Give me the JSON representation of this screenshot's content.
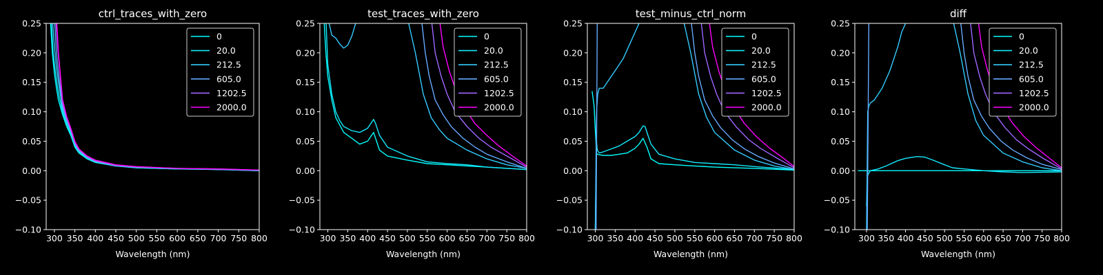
{
  "legend_labels": [
    "0",
    "20.0",
    "212.5",
    "605.0",
    "1202.5",
    "2000.0"
  ],
  "series_colors": [
    "#00ffff",
    "#14ebff",
    "#33ccff",
    "#66aaff",
    "#a066ff",
    "#ff00ff"
  ],
  "chart_data": [
    {
      "type": "line",
      "title": "ctrl_traces_with_zero",
      "xlabel": "Wavelength (nm)",
      "ylabel": "",
      "xlim": [
        280,
        800
      ],
      "ylim": [
        -0.1,
        0.25
      ],
      "xticks": [
        300,
        350,
        400,
        450,
        500,
        550,
        600,
        650,
        700,
        750,
        800
      ],
      "yticks": [
        -0.1,
        -0.05,
        0.0,
        0.05,
        0.1,
        0.15,
        0.2,
        0.25
      ],
      "xtick_labels": [
        "300",
        "350",
        "400",
        "450",
        "500",
        "550",
        "600",
        "650",
        "700",
        "750",
        "800"
      ],
      "ytick_labels": [
        "−0.10",
        "−0.05",
        "0.00",
        "0.05",
        "0.10",
        "0.15",
        "0.20",
        "0.25"
      ],
      "legend_position": "upper-right",
      "series": [
        {
          "name": "0",
          "x": [
            290,
            295,
            300,
            305,
            310,
            320,
            330,
            340,
            350,
            360,
            380,
            400,
            450,
            500,
            600,
            700,
            800
          ],
          "y": [
            0.26,
            0.2,
            0.165,
            0.14,
            0.12,
            0.095,
            0.075,
            0.06,
            0.04,
            0.03,
            0.02,
            0.014,
            0.008,
            0.005,
            0.003,
            0.002,
            0.0
          ]
        },
        {
          "name": "20.0",
          "x": [
            292,
            297,
            302,
            307,
            312,
            320,
            330,
            340,
            350,
            360,
            380,
            400,
            450,
            500,
            600,
            700,
            800
          ],
          "y": [
            0.26,
            0.2,
            0.17,
            0.145,
            0.125,
            0.1,
            0.08,
            0.062,
            0.042,
            0.032,
            0.021,
            0.015,
            0.008,
            0.005,
            0.003,
            0.002,
            0.0
          ]
        },
        {
          "name": "212.5",
          "x": [
            295,
            300,
            305,
            310,
            320,
            330,
            340,
            350,
            360,
            380,
            400,
            450,
            500,
            600,
            700,
            800
          ],
          "y": [
            0.26,
            0.21,
            0.175,
            0.15,
            0.105,
            0.085,
            0.065,
            0.044,
            0.033,
            0.022,
            0.015,
            0.008,
            0.006,
            0.004,
            0.002,
            0.001
          ]
        },
        {
          "name": "605.0",
          "x": [
            300,
            305,
            310,
            320,
            330,
            340,
            350,
            360,
            380,
            400,
            450,
            500,
            600,
            700,
            800
          ],
          "y": [
            0.26,
            0.2,
            0.165,
            0.11,
            0.088,
            0.068,
            0.046,
            0.034,
            0.023,
            0.016,
            0.009,
            0.006,
            0.004,
            0.002,
            0.001
          ]
        },
        {
          "name": "1202.5",
          "x": [
            303,
            308,
            313,
            320,
            330,
            340,
            350,
            360,
            380,
            400,
            450,
            500,
            600,
            700,
            800
          ],
          "y": [
            0.26,
            0.21,
            0.17,
            0.115,
            0.09,
            0.07,
            0.048,
            0.036,
            0.024,
            0.017,
            0.009,
            0.006,
            0.004,
            0.003,
            0.001
          ]
        },
        {
          "name": "2000.0",
          "x": [
            305,
            310,
            315,
            320,
            330,
            340,
            350,
            360,
            380,
            400,
            450,
            500,
            600,
            700,
            800
          ],
          "y": [
            0.26,
            0.2,
            0.16,
            0.12,
            0.092,
            0.072,
            0.05,
            0.037,
            0.025,
            0.018,
            0.01,
            0.007,
            0.004,
            0.003,
            0.001
          ]
        }
      ]
    },
    {
      "type": "line",
      "title": "test_traces_with_zero",
      "xlabel": "Wavelength (nm)",
      "ylabel": "",
      "xlim": [
        280,
        800
      ],
      "ylim": [
        -0.1,
        0.25
      ],
      "xticks": [
        300,
        350,
        400,
        450,
        500,
        550,
        600,
        650,
        700,
        750,
        800
      ],
      "yticks": [
        -0.1,
        -0.05,
        0.0,
        0.05,
        0.1,
        0.15,
        0.2,
        0.25
      ],
      "xtick_labels": [
        "300",
        "350",
        "400",
        "450",
        "500",
        "550",
        "600",
        "650",
        "700",
        "750",
        "800"
      ],
      "ytick_labels": [
        "−0.10",
        "−0.05",
        "0.00",
        "0.05",
        "0.10",
        "0.15",
        "0.20",
        "0.25"
      ],
      "legend_position": "upper-right",
      "series": [
        {
          "name": "0",
          "x": [
            290,
            295,
            300,
            310,
            320,
            340,
            360,
            380,
            400,
            410,
            415,
            420,
            430,
            450,
            500,
            550,
            600,
            700,
            800
          ],
          "y": [
            0.26,
            0.2,
            0.16,
            0.12,
            0.09,
            0.065,
            0.055,
            0.045,
            0.05,
            0.06,
            0.065,
            0.055,
            0.035,
            0.025,
            0.018,
            0.012,
            0.01,
            0.006,
            0.002
          ]
        },
        {
          "name": "20.0",
          "x": [
            295,
            300,
            310,
            320,
            330,
            340,
            360,
            380,
            400,
            410,
            415,
            420,
            430,
            450,
            500,
            550,
            600,
            650,
            700,
            800
          ],
          "y": [
            0.26,
            0.18,
            0.13,
            0.1,
            0.085,
            0.075,
            0.068,
            0.065,
            0.072,
            0.082,
            0.087,
            0.08,
            0.06,
            0.04,
            0.025,
            0.015,
            0.012,
            0.01,
            0.006,
            0.002
          ]
        },
        {
          "name": "212.5",
          "x": [
            300,
            310,
            320,
            330,
            340,
            350,
            360,
            370,
            380,
            390,
            400,
            420,
            440,
            450,
            480,
            500,
            520,
            540,
            560,
            580,
            600,
            650,
            700,
            750,
            800
          ],
          "y": [
            0.26,
            0.23,
            0.225,
            0.215,
            0.208,
            0.213,
            0.228,
            0.25,
            0.26,
            0.26,
            0.26,
            0.26,
            0.26,
            0.26,
            0.26,
            0.26,
            0.2,
            0.13,
            0.09,
            0.07,
            0.055,
            0.035,
            0.02,
            0.01,
            0.004
          ]
        },
        {
          "name": "605.0",
          "x": [
            535,
            545,
            555,
            570,
            590,
            610,
            640,
            670,
            700,
            750,
            800
          ],
          "y": [
            0.26,
            0.2,
            0.16,
            0.12,
            0.095,
            0.075,
            0.055,
            0.04,
            0.028,
            0.015,
            0.004
          ]
        },
        {
          "name": "1202.5",
          "x": [
            560,
            570,
            585,
            600,
            620,
            650,
            680,
            710,
            750,
            800
          ],
          "y": [
            0.26,
            0.2,
            0.16,
            0.13,
            0.1,
            0.075,
            0.055,
            0.04,
            0.025,
            0.006
          ]
        },
        {
          "name": "2000.0",
          "x": [
            580,
            590,
            605,
            620,
            640,
            670,
            700,
            730,
            770,
            800
          ],
          "y": [
            0.26,
            0.21,
            0.17,
            0.14,
            0.11,
            0.08,
            0.06,
            0.042,
            0.022,
            0.008
          ]
        }
      ]
    },
    {
      "type": "line",
      "title": "test_minus_ctrl_norm",
      "xlabel": "Wavelength (nm)",
      "ylabel": "",
      "xlim": [
        280,
        800
      ],
      "ylim": [
        -0.1,
        0.25
      ],
      "xticks": [
        300,
        350,
        400,
        450,
        500,
        550,
        600,
        650,
        700,
        750,
        800
      ],
      "yticks": [
        -0.1,
        -0.05,
        0.0,
        0.05,
        0.1,
        0.15,
        0.2,
        0.25
      ],
      "xtick_labels": [
        "300",
        "350",
        "400",
        "450",
        "500",
        "550",
        "600",
        "650",
        "700",
        "750",
        "800"
      ],
      "ytick_labels": [
        "−0.10",
        "−0.05",
        "0.00",
        "0.05",
        "0.10",
        "0.15",
        "0.20",
        "0.25"
      ],
      "legend_position": "upper-right",
      "series": [
        {
          "name": "0",
          "x": [
            292,
            297,
            300,
            303,
            305,
            310,
            320,
            340,
            360,
            380,
            400,
            410,
            420,
            430,
            440,
            460,
            500,
            550,
            600,
            700,
            800
          ],
          "y": [
            0.135,
            0.11,
            0.07,
            0.03,
            0.028,
            0.027,
            0.026,
            0.026,
            0.028,
            0.03,
            0.038,
            0.045,
            0.055,
            0.04,
            0.02,
            0.012,
            0.01,
            0.008,
            0.006,
            0.004,
            0.001
          ]
        },
        {
          "name": "20.0",
          "x": [
            300,
            303,
            305,
            310,
            320,
            340,
            360,
            380,
            400,
            410,
            420,
            425,
            430,
            440,
            460,
            500,
            550,
            600,
            650,
            700,
            800
          ],
          "y": [
            -0.1,
            0.05,
            0.035,
            0.03,
            0.032,
            0.037,
            0.042,
            0.05,
            0.058,
            0.065,
            0.076,
            0.075,
            0.065,
            0.045,
            0.028,
            0.02,
            0.014,
            0.012,
            0.01,
            0.007,
            0.002
          ]
        },
        {
          "name": "212.5",
          "x": [
            300,
            303,
            306,
            310,
            320,
            330,
            340,
            350,
            360,
            370,
            380,
            390,
            400,
            410,
            420,
            440,
            460,
            480,
            500,
            520,
            540,
            560,
            580,
            600,
            650,
            700,
            750,
            800
          ],
          "y": [
            -0.1,
            0.1,
            0.13,
            0.14,
            0.14,
            0.15,
            0.16,
            0.17,
            0.18,
            0.19,
            0.205,
            0.22,
            0.235,
            0.25,
            0.26,
            0.26,
            0.26,
            0.26,
            0.26,
            0.26,
            0.2,
            0.13,
            0.09,
            0.065,
            0.035,
            0.018,
            0.008,
            0.002
          ]
        },
        {
          "name": "605.0",
          "x": [
            302,
            305,
            540,
            550,
            560,
            575,
            595,
            615,
            645,
            675,
            710,
            750,
            800
          ],
          "y": [
            -0.1,
            0.26,
            0.26,
            0.2,
            0.16,
            0.12,
            0.093,
            0.073,
            0.052,
            0.037,
            0.024,
            0.013,
            0.003
          ]
        },
        {
          "name": "1202.5",
          "x": [
            565,
            575,
            590,
            605,
            625,
            655,
            685,
            715,
            755,
            800
          ],
          "y": [
            0.26,
            0.2,
            0.16,
            0.13,
            0.1,
            0.074,
            0.053,
            0.038,
            0.022,
            0.005
          ]
        },
        {
          "name": "2000.0",
          "x": [
            585,
            595,
            610,
            625,
            645,
            675,
            705,
            735,
            775,
            800
          ],
          "y": [
            0.26,
            0.21,
            0.17,
            0.14,
            0.11,
            0.08,
            0.058,
            0.04,
            0.02,
            0.007
          ]
        }
      ]
    },
    {
      "type": "line",
      "title": "diff",
      "xlabel": "Wavelength (nm)",
      "ylabel": "",
      "xlim": [
        270,
        800
      ],
      "ylim": [
        -0.1,
        0.25
      ],
      "xticks": [
        300,
        350,
        400,
        450,
        500,
        550,
        600,
        650,
        700,
        750,
        800
      ],
      "yticks": [
        -0.1,
        -0.05,
        0.0,
        0.05,
        0.1,
        0.15,
        0.2,
        0.25
      ],
      "xtick_labels": [
        "300",
        "350",
        "400",
        "450",
        "500",
        "550",
        "600",
        "650",
        "700",
        "750",
        "800"
      ],
      "ytick_labels": [
        "−0.10",
        "−0.05",
        "0.00",
        "0.05",
        "0.10",
        "0.15",
        "0.20",
        "0.25"
      ],
      "legend_position": "upper-right",
      "series": [
        {
          "name": "0",
          "x": [
            278,
            800
          ],
          "y": [
            0.0,
            0.0
          ]
        },
        {
          "name": "20.0",
          "x": [
            300,
            302,
            305,
            310,
            330,
            350,
            380,
            400,
            430,
            450,
            470,
            500,
            520,
            550,
            600,
            650,
            700,
            800
          ],
          "y": [
            -0.06,
            -0.01,
            -0.005,
            0.0,
            0.003,
            0.008,
            0.017,
            0.021,
            0.024,
            0.023,
            0.018,
            0.01,
            0.005,
            0.003,
            0.0,
            -0.002,
            -0.003,
            -0.002
          ]
        },
        {
          "name": "212.5",
          "x": [
            300,
            303,
            306,
            310,
            320,
            330,
            340,
            350,
            360,
            370,
            380,
            390,
            400,
            410,
            420,
            440,
            480,
            520,
            540,
            560,
            580,
            600,
            650,
            700,
            750,
            800
          ],
          "y": [
            -0.1,
            0.1,
            0.11,
            0.115,
            0.12,
            0.13,
            0.14,
            0.155,
            0.17,
            0.19,
            0.21,
            0.235,
            0.25,
            0.26,
            0.26,
            0.26,
            0.26,
            0.26,
            0.2,
            0.13,
            0.085,
            0.06,
            0.03,
            0.015,
            0.005,
            0.0
          ]
        },
        {
          "name": "605.0",
          "x": [
            302,
            306,
            540,
            550,
            560,
            575,
            595,
            615,
            645,
            675,
            710,
            750,
            800
          ],
          "y": [
            -0.1,
            0.26,
            0.26,
            0.2,
            0.16,
            0.12,
            0.092,
            0.072,
            0.05,
            0.035,
            0.022,
            0.011,
            0.002
          ]
        },
        {
          "name": "1202.5",
          "x": [
            565,
            575,
            590,
            605,
            625,
            655,
            685,
            715,
            755,
            800
          ],
          "y": [
            0.26,
            0.2,
            0.16,
            0.13,
            0.1,
            0.073,
            0.052,
            0.037,
            0.02,
            0.003
          ]
        },
        {
          "name": "2000.0",
          "x": [
            585,
            595,
            610,
            625,
            645,
            675,
            705,
            735,
            775,
            800
          ],
          "y": [
            0.26,
            0.21,
            0.17,
            0.14,
            0.11,
            0.08,
            0.057,
            0.039,
            0.018,
            0.005
          ]
        }
      ]
    }
  ]
}
